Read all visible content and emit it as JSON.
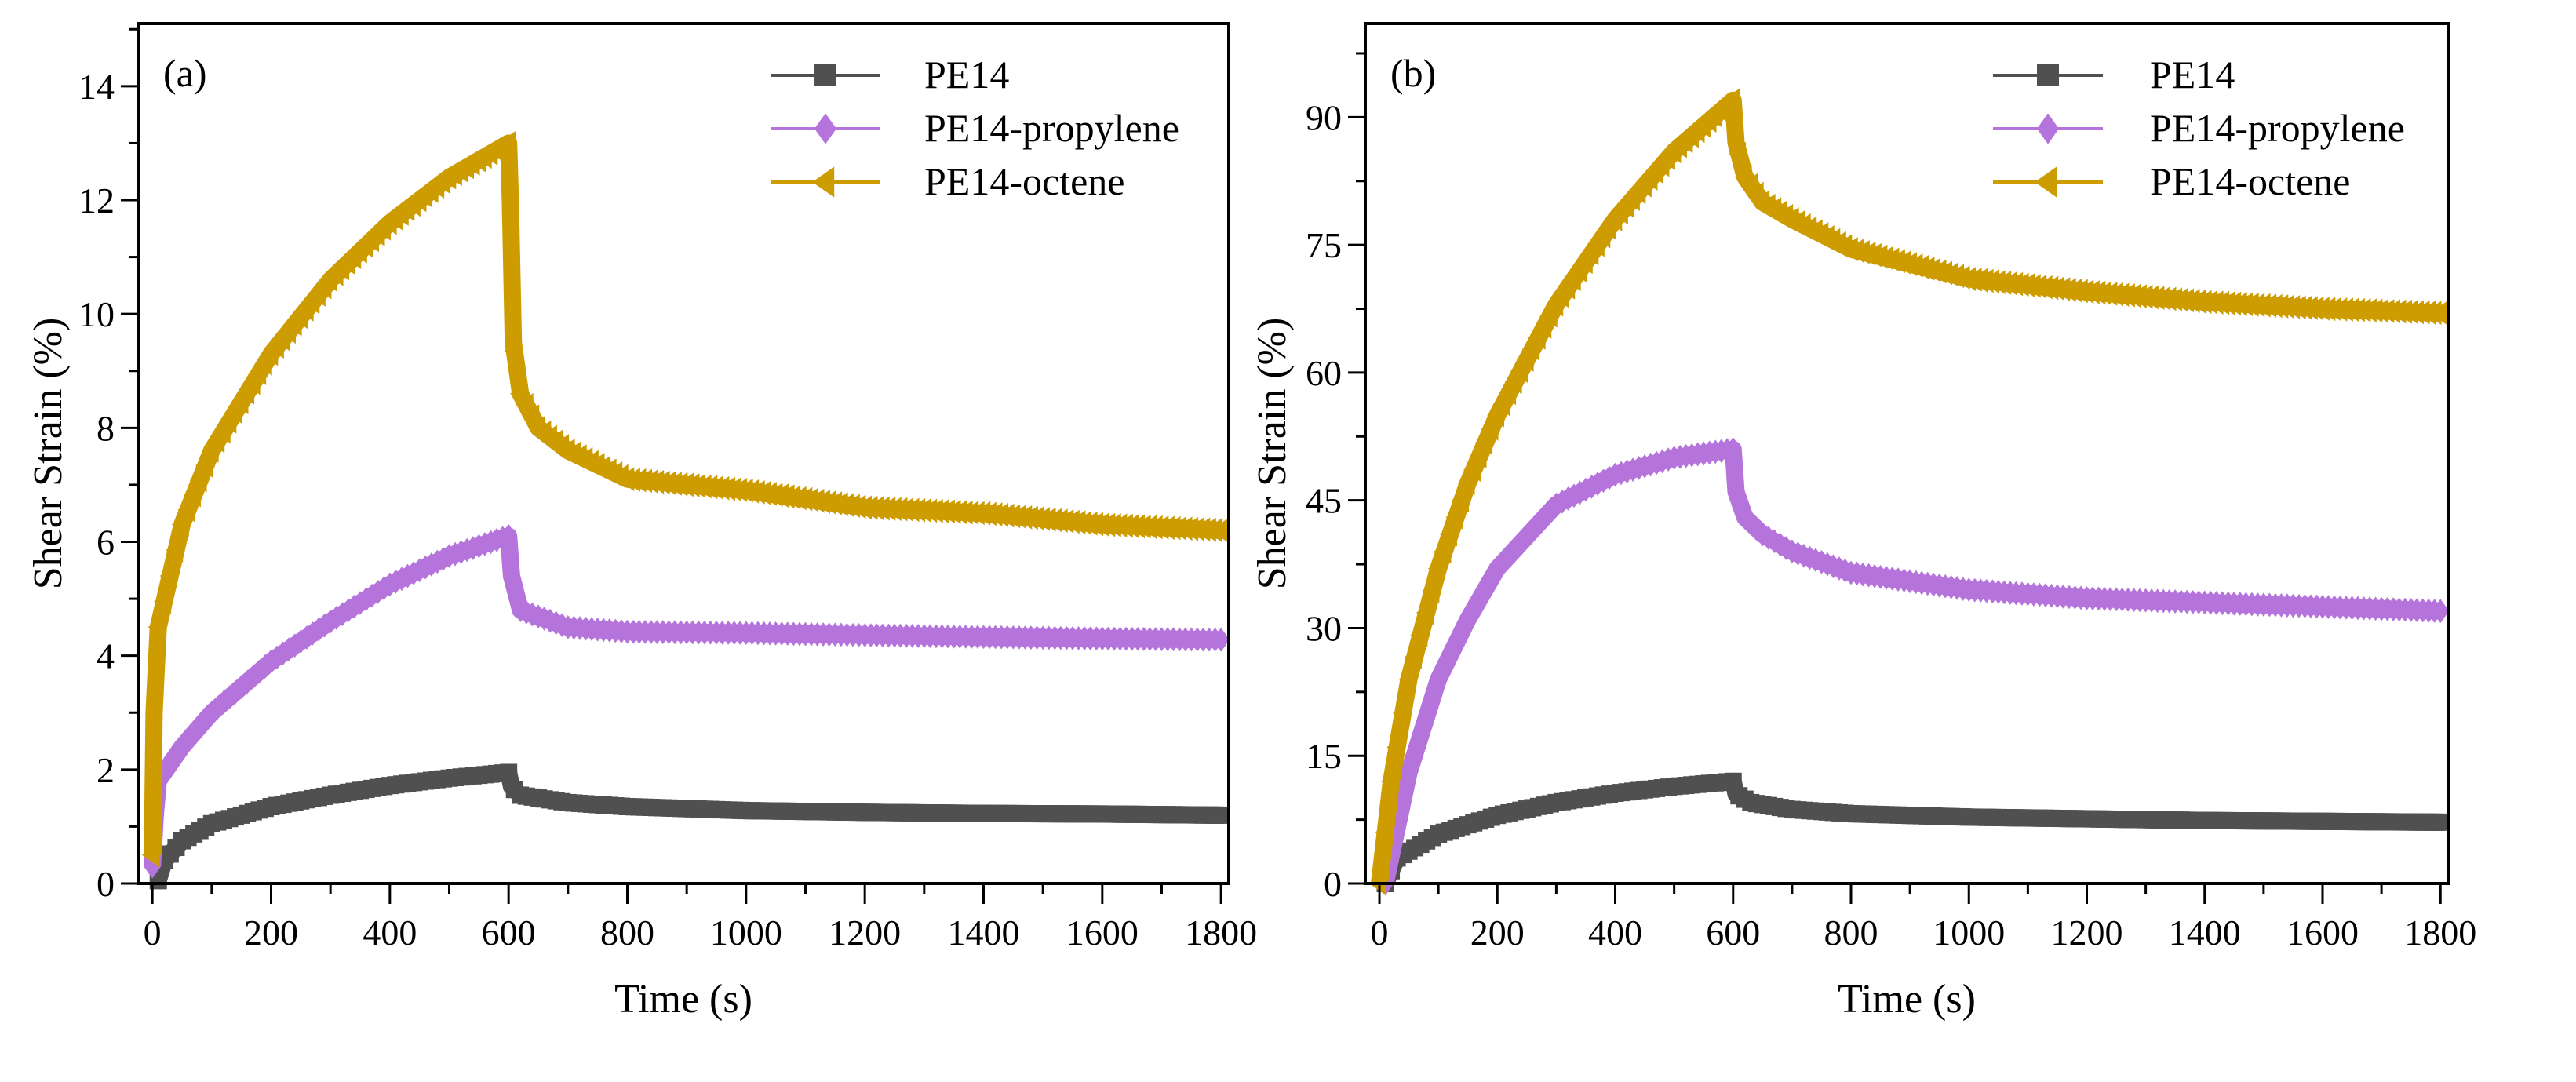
{
  "chart_data": [
    {
      "type": "line",
      "panel_label": "(a)",
      "xlabel": "Time (s)",
      "ylabel": "Shear Strain (%)",
      "xlim": [
        -24,
        1813
      ],
      "ylim": [
        0,
        15.1
      ],
      "xticks": [
        0,
        200,
        400,
        600,
        800,
        1000,
        1200,
        1400,
        1600,
        1800
      ],
      "yticks": [
        0,
        2,
        4,
        6,
        8,
        10,
        12,
        14
      ],
      "grid": false,
      "legend_position": "top-right",
      "series": [
        {
          "name": "PE14",
          "color": "#505050",
          "marker": "square",
          "x": [
            10,
            20,
            50,
            100,
            200,
            300,
            400,
            500,
            600,
            605,
            620,
            700,
            800,
            1000,
            1200,
            1400,
            1600,
            1800
          ],
          "y": [
            0.05,
            0.4,
            0.75,
            1.05,
            1.35,
            1.55,
            1.72,
            1.85,
            1.95,
            1.7,
            1.55,
            1.42,
            1.35,
            1.28,
            1.25,
            1.23,
            1.22,
            1.2
          ]
        },
        {
          "name": "PE14-propylene",
          "color": "#b574dc",
          "marker": "diamond",
          "x": [
            0,
            5,
            10,
            50,
            100,
            200,
            300,
            400,
            500,
            600,
            605,
            620,
            700,
            800,
            1000,
            1200,
            1400,
            1600,
            1800
          ],
          "y": [
            0.3,
            1.2,
            1.8,
            2.4,
            3.0,
            3.9,
            4.6,
            5.25,
            5.75,
            6.1,
            5.4,
            4.8,
            4.5,
            4.42,
            4.4,
            4.36,
            4.33,
            4.3,
            4.28
          ]
        },
        {
          "name": "PE14-octene",
          "color": "#cc9c00",
          "marker": "triangle-left",
          "x": [
            0,
            3,
            10,
            50,
            100,
            200,
            300,
            400,
            500,
            600,
            603,
            608,
            620,
            650,
            700,
            800,
            1000,
            1100,
            1200,
            1400,
            1600,
            1800
          ],
          "y": [
            0.5,
            3.0,
            4.5,
            6.3,
            7.6,
            9.3,
            10.6,
            11.6,
            12.4,
            13.0,
            12.0,
            9.5,
            8.6,
            8.0,
            7.6,
            7.1,
            6.9,
            6.75,
            6.6,
            6.5,
            6.3,
            6.2
          ]
        }
      ]
    },
    {
      "type": "line",
      "panel_label": "(b)",
      "xlabel": "Time (s)",
      "ylabel": "Shear Strain (%)",
      "xlim": [
        -24,
        1813
      ],
      "ylim": [
        0,
        101
      ],
      "xticks": [
        0,
        200,
        400,
        600,
        800,
        1000,
        1200,
        1400,
        1600,
        1800
      ],
      "yticks": [
        0,
        15,
        30,
        45,
        60,
        75,
        90
      ],
      "grid": false,
      "legend_position": "top-right",
      "series": [
        {
          "name": "PE14",
          "color": "#505050",
          "marker": "square",
          "x": [
            10,
            30,
            100,
            200,
            300,
            400,
            500,
            600,
            605,
            630,
            700,
            800,
            1000,
            1200,
            1400,
            1600,
            1800
          ],
          "y": [
            0,
            3,
            5.8,
            8.0,
            9.5,
            10.6,
            11.4,
            12.0,
            10.5,
            9.5,
            8.7,
            8.2,
            7.8,
            7.6,
            7.4,
            7.3,
            7.2
          ]
        },
        {
          "name": "PE14-propylene",
          "color": "#b574dc",
          "marker": "diamond",
          "x": [
            10,
            50,
            100,
            150,
            200,
            300,
            400,
            500,
            600,
            605,
            620,
            650,
            700,
            800,
            1000,
            1200,
            1400,
            1600,
            1800
          ],
          "y": [
            0,
            13,
            24,
            31,
            37,
            44.5,
            48,
            50,
            51,
            46,
            43,
            41,
            39,
            36.5,
            34.5,
            33.5,
            33,
            32.5,
            32
          ]
        },
        {
          "name": "PE14-octene",
          "color": "#cc9c00",
          "marker": "triangle-left",
          "x": [
            0,
            20,
            50,
            100,
            150,
            200,
            300,
            400,
            500,
            600,
            605,
            620,
            650,
            700,
            800,
            1000,
            1200,
            1400,
            1600,
            1800
          ],
          "y": [
            0,
            12,
            24,
            37,
            47,
            55,
            68,
            78,
            86,
            92,
            87,
            83,
            80,
            78,
            74.5,
            71,
            69.5,
            68.3,
            67.5,
            67
          ]
        }
      ]
    }
  ]
}
